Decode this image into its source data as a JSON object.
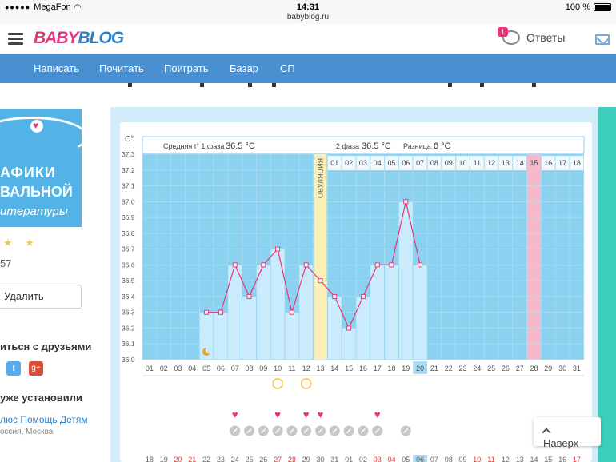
{
  "status_bar": {
    "carrier": "MegaFon",
    "time": "14:31",
    "url": "babyblog.ru",
    "battery": "100 %"
  },
  "header": {
    "logo_part1": "BABY",
    "logo_part2": "BLOG",
    "answers_label": "Ответы",
    "answers_badge": "1"
  },
  "nav": {
    "items": [
      "Написать",
      "Почитать",
      "Поиграть",
      "Базар",
      "СП"
    ]
  },
  "sidebar": {
    "image_text": {
      "line1": "АФИКИ",
      "line2": "ВАЛЬНОЙ",
      "line3": "итературы"
    },
    "rating_stars": "★ ★",
    "count": "57",
    "delete_label": "Удалить",
    "share_label": "иться с друзьями",
    "twitter": "t",
    "google": "g+",
    "installed_label": "уже установили",
    "help_link": "люс Помощь Детям",
    "location": "оссия, Москва"
  },
  "chart_data": {
    "type": "line",
    "y_axis_label": "С°",
    "ylim": [
      36.0,
      37.3
    ],
    "y_ticks": [
      "37.3",
      "37.2",
      "37.1",
      "37.0",
      "36.9",
      "36.8",
      "36.7",
      "36.6",
      "36.5",
      "36.4",
      "36.3",
      "36.2",
      "36.1",
      "36.0"
    ],
    "phase1_label": "Средняя t° 1 фаза",
    "phase1_value": "36.5 °С",
    "phase2_label": "2 фаза",
    "phase2_value": "36.5 °С",
    "diff_label": "Разница t°",
    "diff_value": "0 °С",
    "ovulation_label": "ОВУЛЯЦИЯ",
    "ovulation_day_index": 12,
    "highlight_pink_index": 27,
    "highlight_blue_index": 19,
    "days": [
      "01",
      "02",
      "03",
      "04",
      "05",
      "06",
      "07",
      "08",
      "09",
      "10",
      "11",
      "12",
      "13",
      "14",
      "15",
      "16",
      "17",
      "18",
      "19",
      "20",
      "21",
      "22",
      "23",
      "24",
      "25",
      "26",
      "27",
      "28",
      "29",
      "30",
      "31"
    ],
    "top_days": [
      "01",
      "02",
      "03",
      "04",
      "05",
      "06",
      "07",
      "08",
      "09",
      "10",
      "11",
      "12",
      "13",
      "14",
      "15",
      "16",
      "17",
      "18"
    ],
    "temperatures": [
      null,
      null,
      null,
      null,
      36.3,
      36.3,
      36.6,
      36.4,
      36.6,
      36.7,
      36.3,
      36.6,
      36.5,
      36.4,
      36.2,
      36.4,
      36.6,
      36.6,
      37.0,
      36.6,
      null,
      null,
      null,
      null,
      null,
      null,
      null,
      null,
      null,
      null,
      null
    ],
    "colors": {
      "bar": "#c9ebfb",
      "bar_border": "#8fcdec",
      "grid_bg": "#8ad2ef",
      "line": "#e7347c",
      "ovulation": "#faf0b6",
      "pink": "#f6b9cc",
      "highlight": "#a9dcf2"
    }
  },
  "markers": {
    "moon_day_index": 4,
    "circle_day_indices": [
      9,
      11
    ],
    "heart_day_indices": [
      6,
      9,
      11,
      12,
      16
    ],
    "check_day_indices": [
      6,
      7,
      8,
      9,
      10,
      11,
      12,
      13,
      14,
      15,
      16,
      18
    ]
  },
  "bottom_dates": {
    "labels": [
      "18",
      "19",
      "20",
      "21",
      "22",
      "23",
      "24",
      "25",
      "26",
      "27",
      "28",
      "29",
      "30",
      "31",
      "01",
      "02",
      "03",
      "04",
      "05",
      "06",
      "07",
      "08",
      "09",
      "10",
      "11",
      "12",
      "13",
      "14",
      "15",
      "16",
      "17"
    ],
    "red_indices": [
      2,
      3,
      9,
      10,
      16,
      17,
      23,
      24,
      30
    ],
    "highlight_index": 19
  },
  "naverh_label": "Наверх"
}
